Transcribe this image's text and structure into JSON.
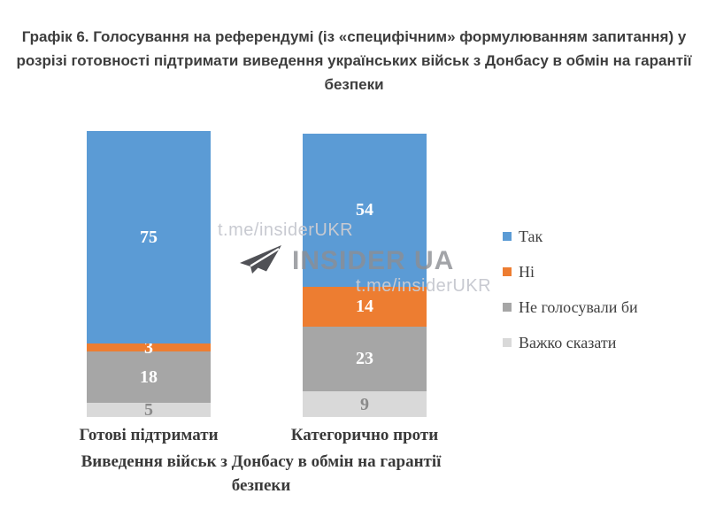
{
  "chart_data": {
    "type": "bar",
    "stacked": true,
    "title": "Графік 6. Голосування на референдумі (із «специфічним» формулюванням запитання) у розрізі готовності підтримати виведення українських військ з Донбасу в обмін на гарантії безпеки",
    "title_lines": [
      "Графік 6. Голосування на референдумі (із «специфічним» формулюванням запитання) у",
      "розрізі готовності підтримати виведення українських військ з Донбасу в обмін на гарантії",
      "безпеки"
    ],
    "categories": [
      "Готові підтримати",
      "Категорично проти"
    ],
    "series": [
      {
        "name": "Так",
        "color": "#5B9BD5",
        "label_color": "#ffffff",
        "values": [
          75,
          54
        ]
      },
      {
        "name": "Ні",
        "color": "#ED7D31",
        "label_color": "#ffffff",
        "values": [
          3,
          14
        ]
      },
      {
        "name": "Не голосували би",
        "color": "#A6A6A6",
        "label_color": "#ffffff",
        "values": [
          18,
          23
        ]
      },
      {
        "name": "Важко сказати",
        "color": "#D9D9D9",
        "label_color": "#8a8a8a",
        "values": [
          5,
          9
        ]
      }
    ],
    "xlabel": "Виведення військ з Донбасу в обмін на гарантії безпеки",
    "xlabel_lines": [
      "Виведення військ з Донбасу в обмін на гарантії",
      "безпеки"
    ],
    "ylim": [
      0,
      101
    ],
    "axes_visible": false,
    "gridlines": false,
    "legend_position": "right",
    "value_labels": true
  },
  "watermark": {
    "handle_top": "t.me/insiderUKR",
    "brand": "INSIDER UA",
    "handle_bottom": "t.me/insiderUKR",
    "brand_color": "#8c8e93",
    "handle_color": "#c8cad1",
    "plane_icon_color": "#505156"
  }
}
